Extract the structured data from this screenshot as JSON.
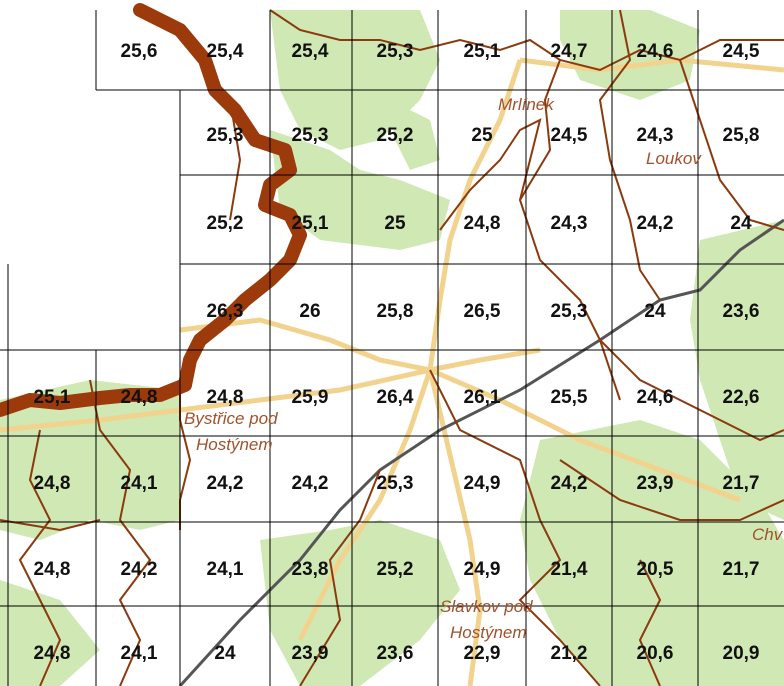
{
  "map": {
    "colors": {
      "forest": "#cfe8b4",
      "border": "#8b3a0e",
      "main_border": "#9c3a0b",
      "grid": "#000000",
      "road": "#f2d38e",
      "railway": "#555555",
      "place_label": "#a0522d"
    },
    "place_labels": {
      "mrlinek": "Mrlínek",
      "loukov": "Loukov",
      "bystrice_1": "Bystřice pod",
      "bystrice_2": "Hostýnem",
      "chv": "Chv",
      "slavkov_1": "Slavkov pod",
      "slavkov_2": "Hostýnem"
    },
    "grid_rows": [
      [
        "",
        "25,6",
        "25,4",
        "25,4",
        "25,3",
        "25,1",
        "24,7",
        "24,6",
        "24,5"
      ],
      [
        "",
        "",
        "25,3",
        "25,3",
        "25,2",
        "25",
        "24,5",
        "24,3",
        "25,8"
      ],
      [
        "",
        "",
        "25,2",
        "25,1",
        "25",
        "24,8",
        "24,3",
        "24,2",
        "24"
      ],
      [
        "",
        "",
        "26,3",
        "26",
        "25,8",
        "26,5",
        "25,3",
        "24",
        "23,6"
      ],
      [
        "25,1",
        "24,8",
        "24,8",
        "25,9",
        "26,4",
        "26,1",
        "25,5",
        "24,6",
        "22,6"
      ],
      [
        "24,8",
        "24,1",
        "24,2",
        "24,2",
        "25,3",
        "24,9",
        "24,2",
        "23,9",
        "21,7"
      ],
      [
        "24,8",
        "24,2",
        "24,1",
        "23,8",
        "25,2",
        "24,9",
        "21,4",
        "20,5",
        "21,7"
      ],
      [
        "24,8",
        "24,1",
        "24",
        "23,9",
        "23,6",
        "22,9",
        "21,2",
        "20,6",
        "20,9"
      ]
    ]
  }
}
